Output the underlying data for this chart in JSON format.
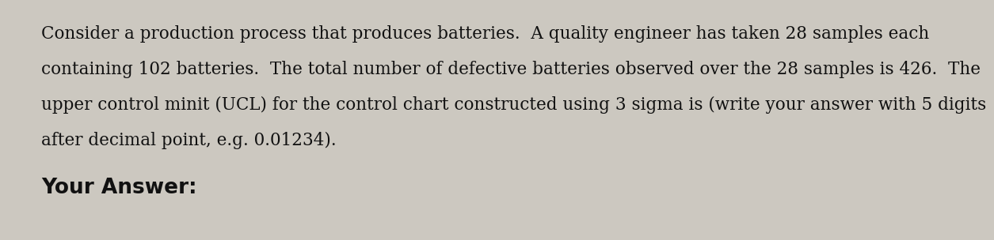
{
  "background_color": "#ccc8c0",
  "text_color": "#111111",
  "line1": "Consider a production process that produces batteries.  A quality engineer has taken 28 samples each",
  "line2": "containing 102 batteries.  The total number of defective batteries observed over the 28 samples is 426.  The",
  "line3": "upper control minit (UCL) for the control chart constructed using 3 sigma is (write your answer with 5 digits",
  "line4": "after decimal point, e.g. 0.01234).",
  "line5": "Your Answer:",
  "body_fontsize": 15.5,
  "answer_fontsize": 19,
  "fig_width": 12.0,
  "fig_height": 2.84
}
